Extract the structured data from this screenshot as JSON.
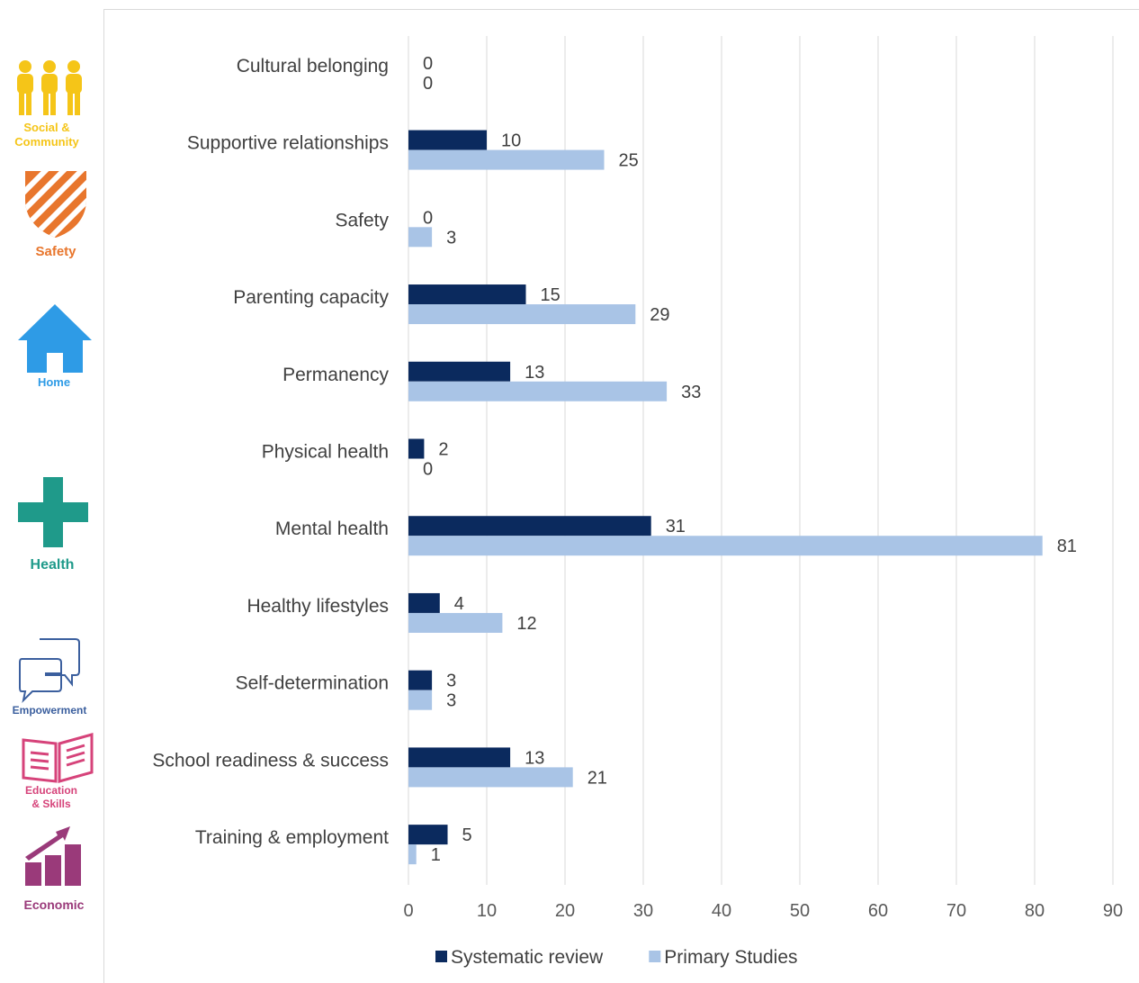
{
  "sidebar": {
    "icons": [
      {
        "name": "social-community-icon",
        "label": "Social &\nCommunity",
        "color": "#f5c518"
      },
      {
        "name": "safety-icon",
        "label": "Safety",
        "color": "#e8762d"
      },
      {
        "name": "home-icon",
        "label": "Home",
        "color": "#2e9be6"
      },
      {
        "name": "health-icon",
        "label": "Health",
        "color": "#1f9a8a"
      },
      {
        "name": "empowerment-icon",
        "label": "Empowerment",
        "color": "#3b5f9e"
      },
      {
        "name": "education-skills-icon",
        "label": "Education\n& Skills",
        "color": "#d6437a"
      },
      {
        "name": "economic-icon",
        "label": "Economic",
        "color": "#9a3a7a"
      }
    ]
  },
  "chart_data": {
    "type": "bar",
    "orientation": "horizontal",
    "categories": [
      "Cultural belonging",
      "Supportive relationships",
      "Safety",
      "Parenting capacity",
      "Permanency",
      "Physical health",
      "Mental health",
      "Healthy lifestyles",
      "Self-determination",
      "School readiness & success",
      "Training & employment"
    ],
    "series": [
      {
        "name": "Systematic review",
        "color": "#0b2a5e",
        "values": [
          0,
          10,
          0,
          15,
          13,
          2,
          31,
          4,
          3,
          13,
          5
        ]
      },
      {
        "name": "Primary Studies",
        "color": "#a9c4e6",
        "values": [
          0,
          25,
          3,
          29,
          33,
          0,
          81,
          12,
          3,
          21,
          1
        ]
      }
    ],
    "xlim": [
      0,
      90
    ],
    "xticks": [
      0,
      10,
      20,
      30,
      40,
      50,
      60,
      70,
      80,
      90
    ],
    "grid": true,
    "data_labels": true,
    "legend_position": "bottom"
  }
}
